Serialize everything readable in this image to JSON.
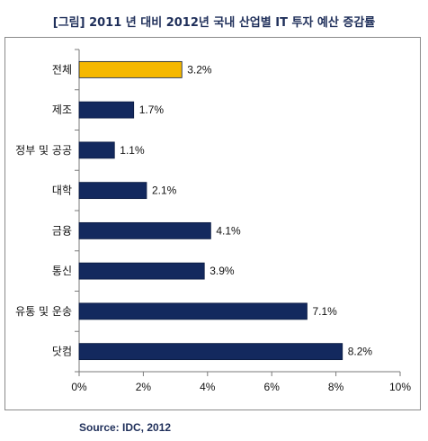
{
  "chart_data": {
    "type": "bar",
    "orientation": "horizontal",
    "title": "[그림]  2011 년 대비 2012년 국내 산업별 IT 투자 예산 증감률",
    "categories": [
      "전체",
      "제조",
      "정부 및 공공",
      "대학",
      "금융",
      "통신",
      "유통 및 운송",
      "닷컴"
    ],
    "values": [
      3.2,
      1.7,
      1.1,
      2.1,
      4.1,
      3.9,
      7.1,
      8.2
    ],
    "value_labels": [
      "3.2%",
      "1.7%",
      "1.1%",
      "2.1%",
      "4.1%",
      "3.9%",
      "7.1%",
      "8.2%"
    ],
    "xlim": [
      0,
      10
    ],
    "x_ticks": [
      0,
      2,
      4,
      6,
      8,
      10
    ],
    "x_tick_labels": [
      "0%",
      "2%",
      "4%",
      "6%",
      "8%",
      "10%"
    ],
    "xlabel": "",
    "ylabel": "",
    "grid": false,
    "legend": "none",
    "colors": {
      "default": "#13295e",
      "highlight": "#f5b800"
    },
    "highlight_category": "전체",
    "source": "Source: IDC,  2012"
  }
}
